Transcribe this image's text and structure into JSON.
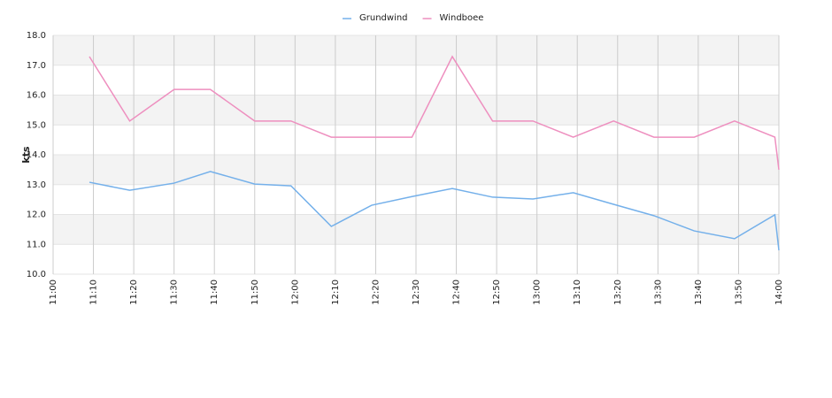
{
  "chart_data": {
    "type": "line",
    "y_label": "kts",
    "x": [
      "11:09",
      "11:19",
      "11:30",
      "11:39",
      "11:50",
      "11:59",
      "12:09",
      "12:19",
      "12:29",
      "12:39",
      "12:49",
      "12:59",
      "13:09",
      "13:19",
      "13:29",
      "13:39",
      "13:49",
      "13:59",
      "14:00"
    ],
    "series": [
      {
        "name": "Grundwind",
        "color": "#74b0ea",
        "values": [
          13.08,
          12.81,
          13.05,
          13.44,
          13.02,
          12.96,
          11.6,
          12.31,
          12.6,
          12.87,
          12.58,
          12.52,
          12.73,
          12.34,
          11.96,
          11.45,
          11.19,
          11.99,
          10.8
        ]
      },
      {
        "name": "Windboee",
        "color": "#ee8fbf",
        "values": [
          17.29,
          15.13,
          16.19,
          16.19,
          15.13,
          15.13,
          14.59,
          14.59,
          14.59,
          17.29,
          15.13,
          15.13,
          14.59,
          15.13,
          14.59,
          14.59,
          15.13,
          14.59,
          13.5
        ]
      }
    ],
    "xlim": [
      "11:00",
      "14:00"
    ],
    "xticks": [
      "11:00",
      "11:10",
      "11:20",
      "11:30",
      "11:40",
      "11:50",
      "12:00",
      "12:10",
      "12:20",
      "12:30",
      "12:40",
      "12:50",
      "13:00",
      "13:10",
      "13:20",
      "13:30",
      "13:40",
      "13:50",
      "14:00"
    ],
    "ylim": [
      10,
      18
    ],
    "yticks": [
      {
        "value": 10,
        "label": "10.0"
      },
      {
        "value": 11,
        "label": "11.0"
      },
      {
        "value": 12,
        "label": "12.0"
      },
      {
        "value": 13,
        "label": "13.0"
      },
      {
        "value": 14,
        "label": "14.0"
      },
      {
        "value": 15,
        "label": "15.0"
      },
      {
        "value": 16,
        "label": "16.0"
      },
      {
        "value": 17,
        "label": "17.0"
      },
      {
        "value": 18,
        "label": "18.0"
      }
    ],
    "grid": true,
    "legend": "top"
  }
}
